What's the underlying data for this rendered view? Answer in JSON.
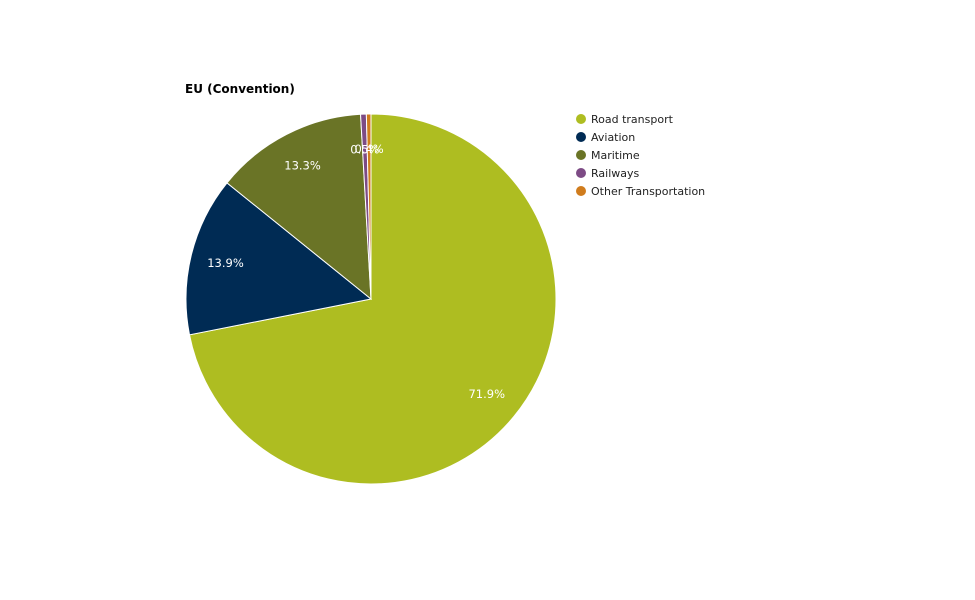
{
  "chart_data": {
    "type": "pie",
    "title": "EU (Convention)",
    "series": [
      {
        "name": "Road transport",
        "value": 71.9,
        "label": "71.9%",
        "color": "#aebd21"
      },
      {
        "name": "Aviation",
        "value": 13.9,
        "label": "13.9%",
        "color": "#002b54"
      },
      {
        "name": "Maritime",
        "value": 13.3,
        "label": "13.3%",
        "color": "#6a7426"
      },
      {
        "name": "Railways",
        "value": 0.5,
        "label": "0.5%",
        "color": "#7d4b85"
      },
      {
        "name": "Other Transportation",
        "value": 0.4,
        "label": "0.4%",
        "color": "#d07c1d"
      }
    ],
    "legend_position": "right"
  }
}
